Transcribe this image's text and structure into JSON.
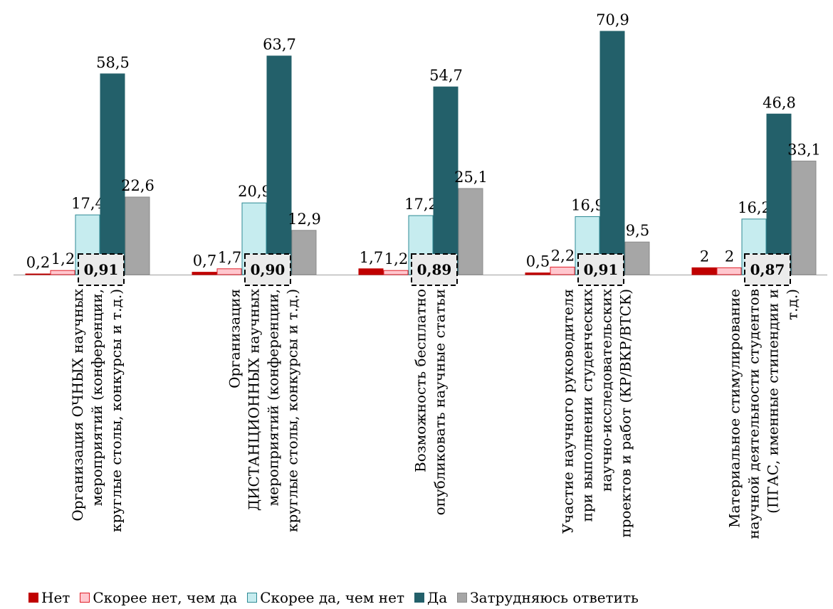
{
  "chart_data": {
    "type": "bar",
    "categories": [
      [
        "Организация ОЧНЫХ научных",
        "мероприятий (конференции,",
        "круглые столы, конкурсы и т.д.)"
      ],
      [
        "Организация",
        "ДИСТАНЦИОННЫХ научных",
        "мероприятий (конференции,",
        "круглые столы, конкурсы и т.д.)"
      ],
      [
        "Возможность бесплатно",
        "опубликовать научные статьи"
      ],
      [
        "Участие научного руководителя",
        "при выполнении студенческих",
        "научно-исследовательских",
        "проектов и работ (КР/ВКР/ВТСК)"
      ],
      [
        "Материальное стимулирование",
        "научной деятельности студентов",
        "(ПГАС, именные стипендии и",
        "т.д.)"
      ]
    ],
    "series": [
      {
        "name": "Нет",
        "values": [
          0.2,
          0.7,
          1.7,
          0.5,
          2
        ],
        "labels": [
          "0,2",
          "0,7",
          "1,7",
          "0,5",
          "2"
        ],
        "color": "#c00000",
        "border": "#c00000"
      },
      {
        "name": "Скорее нет, чем да",
        "values": [
          1.2,
          1.7,
          1.2,
          2.2,
          2
        ],
        "labels": [
          "1,2",
          "1,7",
          "1,2",
          "2,2",
          "2"
        ],
        "color": "#ffc7ce",
        "border": "#e0202a"
      },
      {
        "name": "Скорее да, чем нет",
        "values": [
          17.4,
          20.9,
          17.2,
          16.9,
          16.2
        ],
        "labels": [
          "17,4",
          "20,9",
          "17,2",
          "16,9",
          "16,2"
        ],
        "color": "#c6ecef",
        "border": "#2e8a94"
      },
      {
        "name": "Да",
        "values": [
          58.5,
          63.7,
          54.7,
          70.9,
          46.8
        ],
        "labels": [
          "58,5",
          "63,7",
          "54,7",
          "70,9",
          "46,8"
        ],
        "color": "#23606a",
        "border": "#23606a"
      },
      {
        "name": "Затрудняюсь ответить",
        "values": [
          22.6,
          12.9,
          25.1,
          9.5,
          33.1
        ],
        "labels": [
          "22,6",
          "12,9",
          "25,1",
          "9,5",
          "33,1"
        ],
        "color": "#a6a6a6",
        "border": "#8a8a8a"
      }
    ],
    "index_labels": [
      "0,91",
      "0,90",
      "0,89",
      "0,91",
      "0,87"
    ],
    "ylim": [
      0,
      72
    ],
    "grid": false,
    "legend_position": "bottom"
  }
}
